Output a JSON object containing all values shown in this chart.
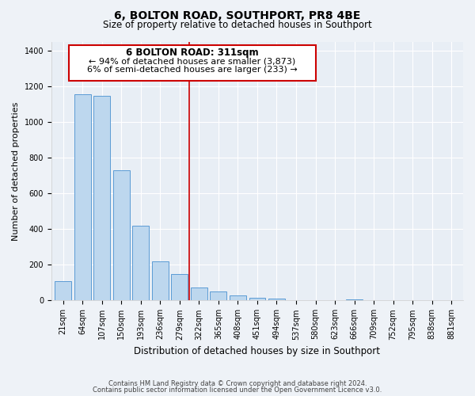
{
  "title": "6, BOLTON ROAD, SOUTHPORT, PR8 4BE",
  "subtitle": "Size of property relative to detached houses in Southport",
  "xlabel": "Distribution of detached houses by size in Southport",
  "ylabel": "Number of detached properties",
  "bar_labels": [
    "21sqm",
    "64sqm",
    "107sqm",
    "150sqm",
    "193sqm",
    "236sqm",
    "279sqm",
    "322sqm",
    "365sqm",
    "408sqm",
    "451sqm",
    "494sqm",
    "537sqm",
    "580sqm",
    "623sqm",
    "666sqm",
    "709sqm",
    "752sqm",
    "795sqm",
    "838sqm",
    "881sqm"
  ],
  "bar_values": [
    110,
    1155,
    1145,
    730,
    420,
    220,
    150,
    75,
    50,
    30,
    15,
    10,
    0,
    0,
    0,
    5,
    0,
    0,
    0,
    0,
    0
  ],
  "bar_color": "#bdd7ee",
  "bar_edge_color": "#5b9bd5",
  "property_line_idx": 7,
  "property_line_label": "6 BOLTON ROAD: 311sqm",
  "annotation_line1": "← 94% of detached houses are smaller (3,873)",
  "annotation_line2": "6% of semi-detached houses are larger (233) →",
  "annotation_box_color": "#ffffff",
  "annotation_box_edge": "#cc0000",
  "vline_color": "#cc0000",
  "ylim": [
    0,
    1450
  ],
  "yticks": [
    0,
    200,
    400,
    600,
    800,
    1000,
    1200,
    1400
  ],
  "footer1": "Contains HM Land Registry data © Crown copyright and database right 2024.",
  "footer2": "Contains public sector information licensed under the Open Government Licence v3.0.",
  "background_color": "#eef2f7",
  "plot_background": "#e8eef5",
  "grid_color": "#ffffff",
  "title_fontsize": 10,
  "subtitle_fontsize": 8.5,
  "ylabel_fontsize": 8,
  "xlabel_fontsize": 8.5,
  "tick_fontsize": 7,
  "footer_fontsize": 6,
  "annot_fontsize_title": 8.5,
  "annot_fontsize_body": 8
}
